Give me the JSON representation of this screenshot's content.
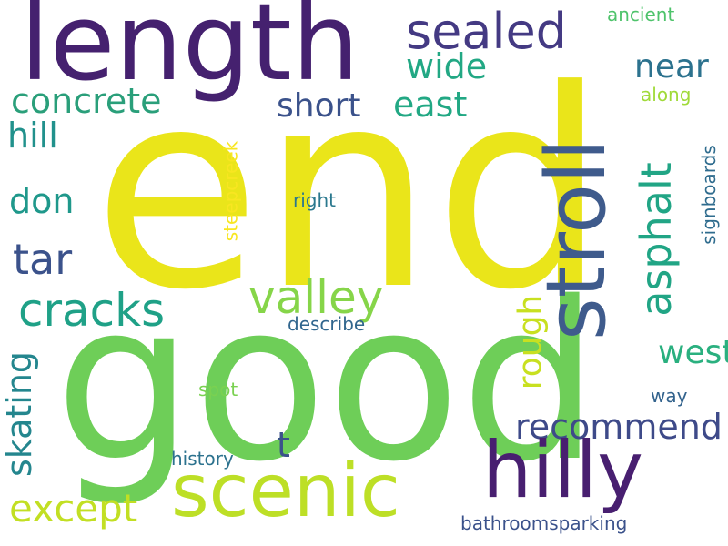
{
  "cloud": {
    "background": "#ffffff",
    "words": {
      "end": "end",
      "good": "good",
      "length": "length",
      "stroll": "stroll",
      "hilly": "hilly",
      "scenic": "scenic",
      "sealed": "sealed",
      "asphalt": "asphalt",
      "valley": "valley",
      "cracks": "cracks",
      "concrete": "concrete",
      "tar": "tar",
      "wide": "wide",
      "near": "near",
      "east": "east",
      "short": "short",
      "hill": "hill",
      "don": "don",
      "except": "except",
      "recommend": "recommend",
      "west": "west",
      "skating": "skating",
      "rough": "rough",
      "t": "t",
      "ancient": "ancient",
      "along": "along",
      "signboards": "signboards",
      "steepcreek": "steepcreek",
      "right": "right",
      "describe": "describe",
      "spot": "spot",
      "way": "way",
      "history": "history",
      "bathroomsparking": "bathroomsparking"
    }
  }
}
